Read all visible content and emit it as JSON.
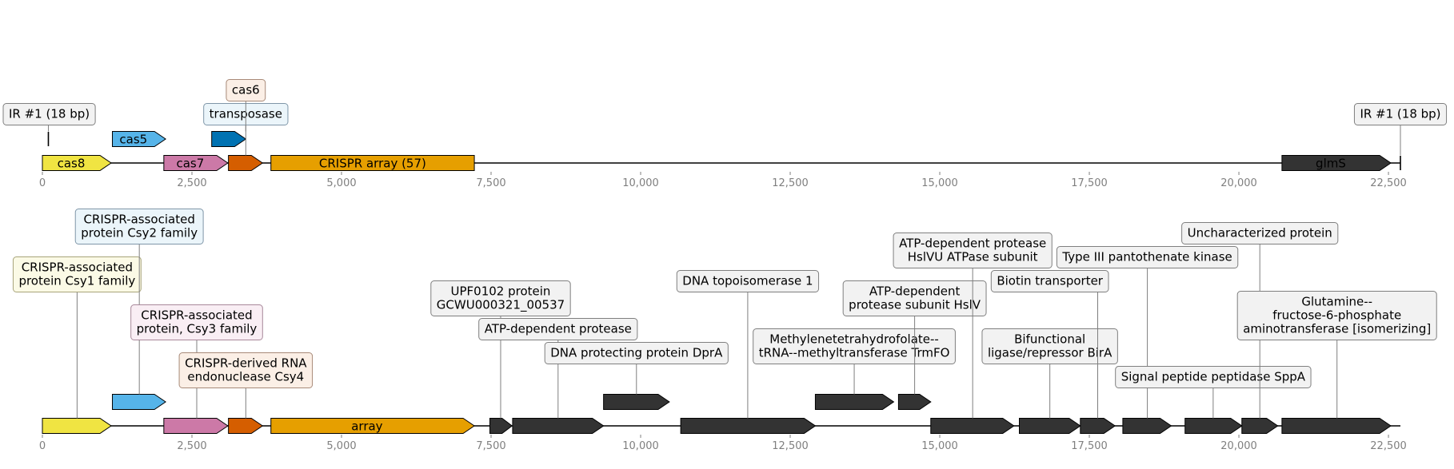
{
  "axis": {
    "min": 0,
    "max": 22700,
    "ticks": [
      0,
      2500,
      5000,
      7500,
      10000,
      12500,
      15000,
      17500,
      20000,
      22500
    ],
    "tick_labels": [
      "0",
      "2,500",
      "5,000",
      "7,500",
      "10,000",
      "12,500",
      "15,000",
      "17,500",
      "20,000",
      "22,500"
    ],
    "tick_color": "#7f7f7f"
  },
  "colors": {
    "cas8": "#f0e442",
    "cas5": "#56b4e9",
    "cas7": "#cc79a7",
    "cas6": "#d55e00",
    "transposase": "#0072b2",
    "crispr_array": "#e69f00",
    "other": "#333333"
  },
  "top_track": {
    "features": [
      {
        "id": "cas8",
        "start": 0,
        "end": 1150,
        "strand": 1,
        "level": 0,
        "color": "#f0e442",
        "label": "cas8",
        "label_color": "#000000"
      },
      {
        "id": "cas5",
        "start": 1170,
        "end": 2060,
        "strand": 1,
        "level": 1,
        "color": "#56b4e9",
        "label": "cas5",
        "label_color": "#000000"
      },
      {
        "id": "cas7",
        "start": 2030,
        "end": 3100,
        "strand": 1,
        "level": 0,
        "color": "#cc79a7",
        "label": "cas7",
        "label_color": "#000000"
      },
      {
        "id": "transposase",
        "start": 2830,
        "end": 3400,
        "strand": 1,
        "level": 1,
        "color": "#0072b2",
        "label": "",
        "label_color": "#000000"
      },
      {
        "id": "cas6",
        "start": 3110,
        "end": 3680,
        "strand": 1,
        "level": 0,
        "color": "#d55e00",
        "label": "",
        "label_color": "#000000"
      },
      {
        "id": "crispr_array",
        "start": 3820,
        "end": 7220,
        "strand": 0,
        "level": 0,
        "color": "#e69f00",
        "label": "CRISPR array (57)",
        "label_color": "#000000"
      },
      {
        "id": "glmS",
        "start": 20720,
        "end": 22540,
        "strand": 1,
        "level": 0,
        "color": "#333333",
        "label": "glmS",
        "label_color": "#ffffff"
      }
    ],
    "markers": [
      {
        "id": "ir_left",
        "pos": 100,
        "level": 1
      },
      {
        "id": "ir_right",
        "pos": 22700,
        "level": 0
      }
    ],
    "callouts": [
      {
        "id": "ir-left",
        "text": [
          "IR #1 (18 bp)"
        ],
        "anchor": 100,
        "anchor_level": 1,
        "box_x": 100,
        "row": 0,
        "bg": "#f2f2f2",
        "border": "#7f7f7f"
      },
      {
        "id": "transposase",
        "text": [
          "transposase"
        ],
        "anchor": 3400,
        "anchor_level": 1,
        "box_x": 3400,
        "row": 0,
        "bg": "#ebf5fa",
        "border": "#7f96a8"
      },
      {
        "id": "cas6",
        "text": [
          "cas6"
        ],
        "anchor": 3400,
        "anchor_level": 0,
        "box_x": 3400,
        "row": 1,
        "bg": "#fbefe6",
        "border": "#a88a78"
      },
      {
        "id": "ir-right",
        "text": [
          "IR #1 (18 bp)"
        ],
        "anchor": 22700,
        "anchor_level": 0,
        "box_x": 22700,
        "row": 0,
        "bg": "#f2f2f2",
        "border": "#7f7f7f"
      }
    ]
  },
  "bottom_track": {
    "features": [
      {
        "id": "csy1",
        "start": 0,
        "end": 1150,
        "strand": 1,
        "level": 0,
        "color": "#f0e442",
        "label": ""
      },
      {
        "id": "csy2",
        "start": 1170,
        "end": 2060,
        "strand": 1,
        "level": 1,
        "color": "#56b4e9",
        "label": ""
      },
      {
        "id": "csy3",
        "start": 2030,
        "end": 3100,
        "strand": 1,
        "level": 0,
        "color": "#cc79a7",
        "label": ""
      },
      {
        "id": "csy4",
        "start": 3110,
        "end": 3680,
        "strand": 1,
        "level": 0,
        "color": "#d55e00",
        "label": ""
      },
      {
        "id": "array",
        "start": 3820,
        "end": 7220,
        "strand": 1,
        "level": 0,
        "color": "#e69f00",
        "label": "array"
      },
      {
        "id": "upf0102",
        "start": 7480,
        "end": 7850,
        "strand": 1,
        "level": 0,
        "color": "#333333",
        "label": ""
      },
      {
        "id": "atp-protease",
        "start": 7860,
        "end": 9380,
        "strand": 1,
        "level": 0,
        "color": "#333333",
        "label": ""
      },
      {
        "id": "dprA",
        "start": 9380,
        "end": 10480,
        "strand": 1,
        "level": 1,
        "color": "#333333",
        "label": ""
      },
      {
        "id": "topo1",
        "start": 10670,
        "end": 12920,
        "strand": 1,
        "level": 0,
        "color": "#333333",
        "label": ""
      },
      {
        "id": "trmfo",
        "start": 12920,
        "end": 14230,
        "strand": 1,
        "level": 1,
        "color": "#333333",
        "label": ""
      },
      {
        "id": "hslv",
        "start": 14310,
        "end": 14850,
        "strand": 1,
        "level": 1,
        "color": "#333333",
        "label": ""
      },
      {
        "id": "hslu",
        "start": 14850,
        "end": 16240,
        "strand": 1,
        "level": 0,
        "color": "#333333",
        "label": ""
      },
      {
        "id": "birA-bifunctional",
        "start": 16330,
        "end": 17350,
        "strand": 1,
        "level": 0,
        "color": "#333333",
        "label": ""
      },
      {
        "id": "biotin-transporter",
        "start": 17350,
        "end": 17930,
        "strand": 1,
        "level": 0,
        "color": "#333333",
        "label": ""
      },
      {
        "id": "pantothenate-kinase",
        "start": 18060,
        "end": 18870,
        "strand": 1,
        "level": 0,
        "color": "#333333",
        "label": ""
      },
      {
        "id": "sppA",
        "start": 19100,
        "end": 20050,
        "strand": 1,
        "level": 0,
        "color": "#333333",
        "label": ""
      },
      {
        "id": "uncharacterized",
        "start": 20050,
        "end": 20650,
        "strand": 1,
        "level": 0,
        "color": "#333333",
        "label": ""
      },
      {
        "id": "glmS-b",
        "start": 20720,
        "end": 22540,
        "strand": 1,
        "level": 0,
        "color": "#333333",
        "label": ""
      }
    ],
    "callouts": [
      {
        "id": "csy1",
        "text": [
          "CRISPR-associated",
          "protein Csy1 family"
        ],
        "anchor": 580,
        "anchor_level": 0,
        "box_x": 580,
        "row": 4,
        "bg": "#fbfae6",
        "border": "#a8a47a"
      },
      {
        "id": "csy2",
        "text": [
          "CRISPR-associated",
          "protein Csy2 family"
        ],
        "anchor": 1620,
        "anchor_level": 1,
        "box_x": 1620,
        "row": 6,
        "bg": "#ebf5fa",
        "border": "#7f96a8"
      },
      {
        "id": "csy3",
        "text": [
          "CRISPR-associated",
          "protein, Csy3 family"
        ],
        "anchor": 2580,
        "anchor_level": 0,
        "box_x": 2580,
        "row": 2,
        "bg": "#f9eef4",
        "border": "#a8889a"
      },
      {
        "id": "csy4",
        "text": [
          "CRISPR-derived RNA",
          "endonuclease Csy4"
        ],
        "anchor": 3400,
        "anchor_level": 0,
        "box_x": 3400,
        "row": 0,
        "bg": "#fbefe6",
        "border": "#a88a78"
      },
      {
        "id": "upf0102",
        "text": [
          "UPF0102 protein",
          "GCWU000321_00537"
        ],
        "anchor": 7660,
        "anchor_level": 0,
        "box_x": 7660,
        "row": 3,
        "bg": "#f2f2f2",
        "border": "#7f7f7f"
      },
      {
        "id": "atp-protease",
        "text": [
          "ATP-dependent protease"
        ],
        "anchor": 8620,
        "anchor_level": 0,
        "box_x": 8620,
        "row": 2,
        "bg": "#f2f2f2",
        "border": "#7f7f7f"
      },
      {
        "id": "dprA",
        "text": [
          "DNA protecting protein DprA"
        ],
        "anchor": 9930,
        "anchor_level": 1,
        "box_x": 9930,
        "row": 1,
        "bg": "#f2f2f2",
        "border": "#7f7f7f"
      },
      {
        "id": "topo1",
        "text": [
          "DNA topoisomerase 1"
        ],
        "anchor": 11790,
        "anchor_level": 0,
        "box_x": 11790,
        "row": 4,
        "bg": "#f2f2f2",
        "border": "#7f7f7f"
      },
      {
        "id": "trmfo",
        "text": [
          "Methylenetetrahydrofolate--",
          "tRNA--methyltransferase TrmFO"
        ],
        "anchor": 13570,
        "anchor_level": 1,
        "box_x": 13570,
        "row": 1,
        "bg": "#f2f2f2",
        "border": "#7f7f7f"
      },
      {
        "id": "hslv",
        "text": [
          "ATP-dependent",
          "protease subunit HslV"
        ],
        "anchor": 14580,
        "anchor_level": 1,
        "box_x": 14580,
        "row": 3,
        "bg": "#f2f2f2",
        "border": "#7f7f7f"
      },
      {
        "id": "hslu",
        "text": [
          "ATP-dependent protease",
          "HslVU ATPase subunit"
        ],
        "anchor": 15550,
        "anchor_level": 0,
        "box_x": 15550,
        "row": 5,
        "bg": "#f2f2f2",
        "border": "#7f7f7f"
      },
      {
        "id": "birA-bifunctional",
        "text": [
          "Bifunctional",
          "ligase/repressor BirA"
        ],
        "anchor": 16840,
        "anchor_level": 0,
        "box_x": 16840,
        "row": 1,
        "bg": "#f2f2f2",
        "border": "#7f7f7f"
      },
      {
        "id": "biotin-transporter",
        "text": [
          "Biotin transporter"
        ],
        "anchor": 17640,
        "anchor_level": 0,
        "box_x": 16840,
        "row": 4,
        "bg": "#f2f2f2",
        "border": "#7f7f7f"
      },
      {
        "id": "pantothenate-kinase",
        "text": [
          "Type III pantothenate kinase"
        ],
        "anchor": 18470,
        "anchor_level": 0,
        "box_x": 18470,
        "row": 5,
        "bg": "#f2f2f2",
        "border": "#7f7f7f"
      },
      {
        "id": "sppA",
        "text": [
          "Signal peptide peptidase SppA"
        ],
        "anchor": 19570,
        "anchor_level": 0,
        "box_x": 19570,
        "row": 0,
        "bg": "#f2f2f2",
        "border": "#7f7f7f"
      },
      {
        "id": "uncharacterized",
        "text": [
          "Uncharacterized protein"
        ],
        "anchor": 20350,
        "anchor_level": 0,
        "box_x": 20350,
        "row": 6,
        "bg": "#f2f2f2",
        "border": "#7f7f7f"
      },
      {
        "id": "glmS",
        "text": [
          "Glutamine--",
          "fructose-6-phosphate",
          "aminotransferase [isomerizing]"
        ],
        "anchor": 21640,
        "anchor_level": 0,
        "box_x": 21640,
        "row": 2,
        "bg": "#f2f2f2",
        "border": "#7f7f7f"
      }
    ]
  }
}
